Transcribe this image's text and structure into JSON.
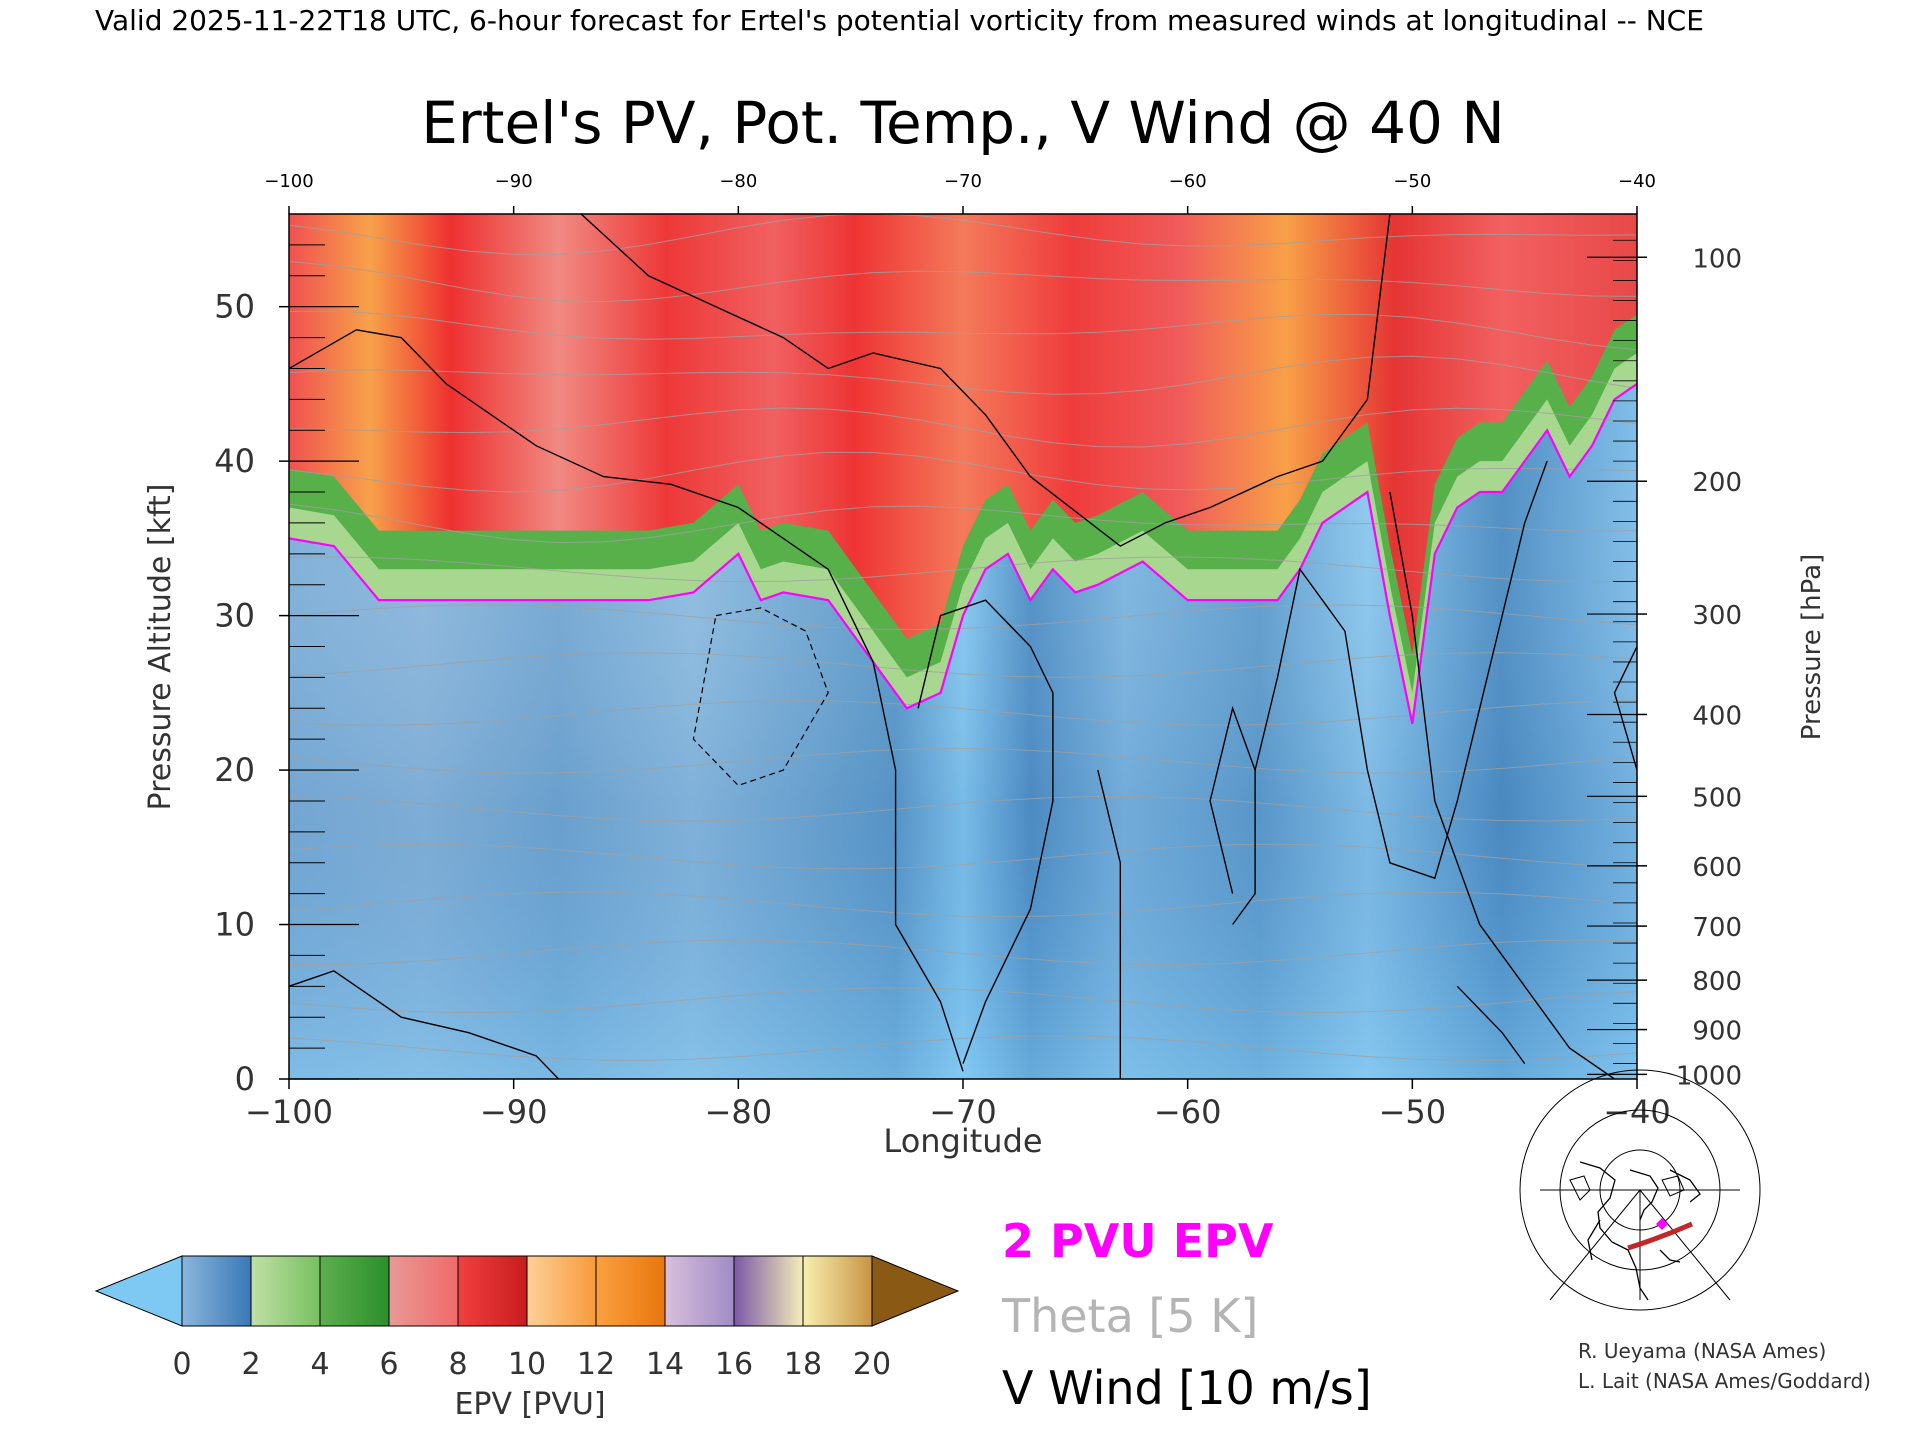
{
  "header": {
    "valid_line": "Valid 2025-11-22T18 UTC, 6-hour forecast for Ertel's potential vorticity from measured winds at longitudinal -- NCE"
  },
  "chart_data": {
    "type": "heatmap",
    "title": "Ertel's PV, Pot. Temp., V Wind @ 40 N",
    "xlabel": "Longitude",
    "ylabel_left": "Pressure Altitude [kft]",
    "ylabel_right": "Pressure [hPa]",
    "xlim": [
      -100,
      -40
    ],
    "ylim_kft": [
      0,
      56
    ],
    "x_ticks": [
      -100,
      -90,
      -80,
      -70,
      -60,
      -50,
      -40
    ],
    "x_tick_labels": [
      "−100",
      "−90",
      "−80",
      "−70",
      "−60",
      "−50",
      "−40"
    ],
    "x_top_tick_labels": [
      "−100",
      "−90",
      "−80",
      "−70",
      "−60",
      "−50",
      "−40"
    ],
    "y_left_ticks": [
      0,
      10,
      20,
      30,
      40,
      50
    ],
    "y_right_ticks": [
      {
        "hpa": "100",
        "kft": 53.2
      },
      {
        "hpa": "200",
        "kft": 38.7
      },
      {
        "hpa": "300",
        "kft": 30.1
      },
      {
        "hpa": "400",
        "kft": 23.6
      },
      {
        "hpa": "500",
        "kft": 18.3
      },
      {
        "hpa": "600",
        "kft": 13.8
      },
      {
        "hpa": "700",
        "kft": 9.9
      },
      {
        "hpa": "800",
        "kft": 6.4
      },
      {
        "hpa": "900",
        "kft": 3.2
      },
      {
        "hpa": "1000",
        "kft": 0.3
      }
    ],
    "epv_tropopause_2pvu": {
      "lon": [
        -100,
        -98,
        -96,
        -94,
        -92,
        -90,
        -88,
        -86,
        -84,
        -82,
        -80,
        -79,
        -78,
        -76,
        -74,
        -72.5,
        -71,
        -70,
        -69,
        -68,
        -67,
        -66,
        -65,
        -64,
        -62,
        -60,
        -58,
        -56,
        -55,
        -54,
        -52,
        -51,
        -50,
        -49,
        -48,
        -47,
        -46,
        -45,
        -44,
        -43,
        -42,
        -41,
        -40
      ],
      "kft": [
        35,
        34.5,
        31,
        31,
        31,
        31,
        31,
        31,
        31,
        31.5,
        34,
        31,
        31.5,
        31,
        27,
        24,
        25,
        30,
        33,
        34,
        31,
        33,
        31.5,
        32,
        33.5,
        31,
        31,
        31,
        33,
        36,
        38,
        30,
        23,
        34,
        37,
        38,
        38,
        40,
        42,
        39,
        41,
        44,
        45
      ]
    },
    "colorbar": {
      "label": "EPV [PVU]",
      "ticks": [
        "0",
        "2",
        "4",
        "6",
        "8",
        "10",
        "12",
        "14",
        "16",
        "18",
        "20"
      ],
      "min_arrow_color": "#7ec8f4",
      "max_arrow_color": "#8a5a14",
      "segments": [
        {
          "from": 0,
          "to": 2,
          "c1": "#8ab6dc",
          "c2": "#3a78b6"
        },
        {
          "from": 2,
          "to": 4,
          "c1": "#c0e0a6",
          "c2": "#78c060"
        },
        {
          "from": 4,
          "to": 6,
          "c1": "#5cb04c",
          "c2": "#2c8e2c"
        },
        {
          "from": 6,
          "to": 8,
          "c1": "#e89a96",
          "c2": "#f06a6a"
        },
        {
          "from": 8,
          "to": 10,
          "c1": "#f04040",
          "c2": "#c81c1c"
        },
        {
          "from": 10,
          "to": 12,
          "c1": "#fcd098",
          "c2": "#f89a3c"
        },
        {
          "from": 12,
          "to": 14,
          "c1": "#fca040",
          "c2": "#e8760c"
        },
        {
          "from": 14,
          "to": 16,
          "c1": "#d8c0dc",
          "c2": "#a08cc4"
        },
        {
          "from": 16,
          "to": 18,
          "c1": "#7c58a8",
          "c2": "#f4eeb8"
        },
        {
          "from": 18,
          "to": 20,
          "c1": "#f8f0b0",
          "c2": "#c89444"
        }
      ]
    }
  },
  "legend": {
    "pvu_label": "2 PVU EPV",
    "pvu_color": "#ff00ff",
    "theta_label": "Theta [5 K]",
    "theta_color": "#b4b4b4",
    "vwind_label": "V Wind [10 m/s]",
    "vwind_color": "#000000"
  },
  "credits": {
    "line1": "R. Ueyama (NASA Ames)",
    "line2": "L. Lait (NASA Ames/Goddard)"
  },
  "inset_map": {
    "icon": "north-america-polar-map-icon",
    "section_color": "#c0282a",
    "marker_color": "#ff00ff"
  }
}
